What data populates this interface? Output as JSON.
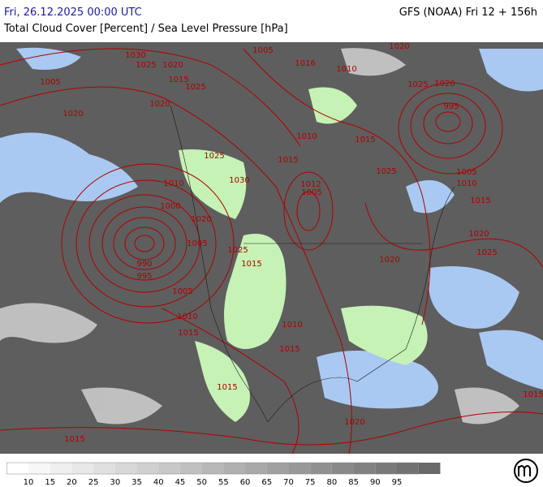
{
  "header": {
    "title_left": "Fri, 26.12.2025 00:00 UTC",
    "title_right": "GFS (NOAA) Fri 12 + 156h",
    "subtitle": "Total Cloud Cover [Percent] / Sea Level Pressure [hPa]"
  },
  "map": {
    "isobar_labels": [
      "1005",
      "1030",
      "1025",
      "1020",
      "1015",
      "1025",
      "1020",
      "1020",
      "1005",
      "1016",
      "1010",
      "1020",
      "1025",
      "1020",
      "995",
      "1010",
      "1015",
      "1015",
      "1025",
      "1030",
      "1010",
      "1012",
      "1005",
      "1025",
      "1005",
      "1010",
      "1015",
      "1000",
      "1020",
      "1005",
      "1025",
      "1015",
      "1020",
      "1020",
      "1025",
      "990",
      "995",
      "1005",
      "1010",
      "1015",
      "1010",
      "1015",
      "1015",
      "1020",
      "1015",
      "1015"
    ]
  },
  "colorbar": {
    "ticks": [
      10,
      15,
      20,
      25,
      30,
      35,
      40,
      45,
      50,
      55,
      60,
      65,
      70,
      75,
      80,
      85,
      90,
      95
    ]
  }
}
